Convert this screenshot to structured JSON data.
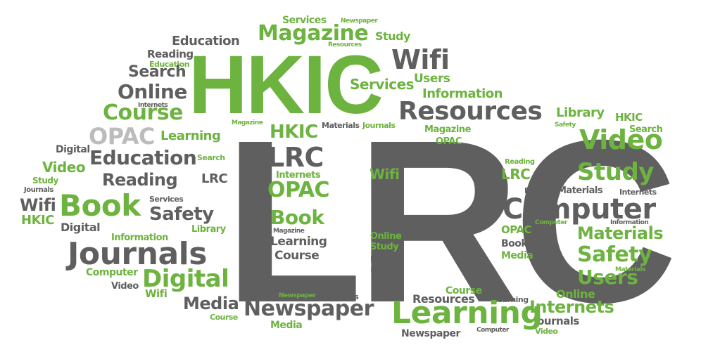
{
  "colors": {
    "green": "#6db33f",
    "dark_gray": "#5f5f5f",
    "light_gray": "#bcbcbc",
    "background": "#ffffff"
  },
  "words": {
    "lrc_big": "LRC",
    "hkic_big": "HKIC",
    "magazine_top": "Magazine",
    "services_top": "Services",
    "newspaper_top": "Newspaper",
    "study_top": "Study",
    "resources_small_top": "Resources",
    "wifi_top": "Wifi",
    "users_top": "Users",
    "services_mid": "Services",
    "information_top": "Information",
    "education_top": "Education",
    "reading_top": "Reading",
    "education_small": "Education",
    "search_left": "Search",
    "online_left": "Online",
    "internets_small_left": "Internets",
    "course_left": "Course",
    "opac_light": "OPAC",
    "learning_left": "Learning",
    "resources_big": "Resources",
    "library_right": "Library",
    "hkic_right": "HKIC",
    "safety_small_right": "Safety",
    "search_right": "Search",
    "video_right": "Video",
    "digital_right": "Digital",
    "study_right": "Study",
    "internets_right_small": "Internets",
    "materials_right_small": "Materials",
    "reading_right_small": "Reading",
    "computer_big": "Computer",
    "computer_right_small": "Computer",
    "information_right_small": "Information",
    "materials_right": "Materials",
    "safety_right": "Safety",
    "materials_right_tiny": "Materials",
    "users_right": "Users",
    "online_right": "Online",
    "book_right": "Book",
    "internets_right": "Internets",
    "journals_right": "Journals",
    "video_bottom_right": "Video",
    "computer_bottom": "Computer",
    "newspaper_bottom": "Newspaper",
    "learning_big": "Learning",
    "learning_small_bottom": "Learning",
    "course_bottom": "Course",
    "resources_bottom": "Resources",
    "safety_bottom": "Safety",
    "users_bottom": "Users",
    "library_bottom": "Library",
    "study_inner": "Study",
    "online_inner": "Online",
    "wifi_inner": "Wifi",
    "magazine_inner": "Magazine",
    "materials_inner": "Materials",
    "journals_inner": "Journals",
    "hkic_inner": "HKIC",
    "lrc_inner": "LRC",
    "internets_inner": "Internets",
    "opac_inner": "OPAC",
    "book_inner": "Book",
    "magazine_inner_small": "Magazine",
    "learning_inner": "Learning",
    "course_inner": "Course",
    "magazine_right_inner": "Magazine",
    "opac_right_inner": "OPAC",
    "reading_c": "Reading",
    "lrc_c": "LRC",
    "opac_c": "OPAC",
    "book_c": "Book",
    "media_c": "Media",
    "digital_left": "Digital",
    "video_left": "Video",
    "study_left": "Study",
    "journals_left_small": "Journals",
    "wifi_left": "Wifi",
    "hkic_left": "HKIC",
    "book_left": "Book",
    "education_mid": "Education",
    "reading_mid": "Reading",
    "search_mid": "Search",
    "lrc_mid": "LRC",
    "services_mid_small": "Services",
    "safety_mid": "Safety",
    "library_mid": "Library",
    "digital_mid": "Digital",
    "information_mid": "Information",
    "journals_big": "Journals",
    "computer_left": "Computer",
    "digital_big": "Digital",
    "video_left_bottom": "Video",
    "wifi_bottom": "Wifi",
    "media_bottom": "Media",
    "newspaper_big": "Newspaper",
    "newspaper_tiny": "Newspaper",
    "resources_tiny": "Resources",
    "course_tiny": "Course",
    "media_tiny": "Media"
  }
}
